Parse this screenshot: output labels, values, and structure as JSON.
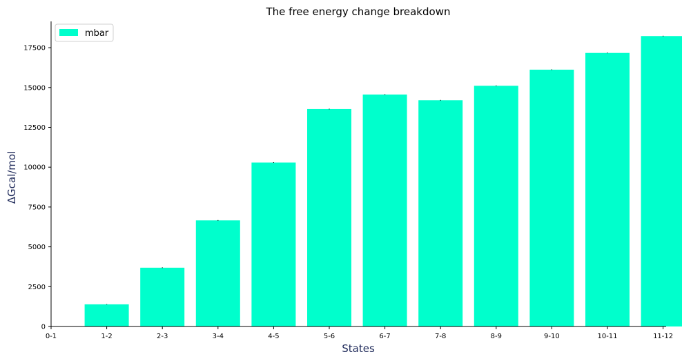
{
  "chart_data": {
    "type": "bar",
    "title": "The free energy change breakdown",
    "xlabel": "States",
    "ylabel": "ΔGcal/mol",
    "categories": [
      "0-1",
      "1-2",
      "2-3",
      "3-4",
      "4-5",
      "5-6",
      "6-7",
      "7-8",
      "8-9",
      "9-10",
      "10-11",
      "11-12"
    ],
    "series": [
      {
        "name": "mbar",
        "color": "#00ffcc",
        "values": [
          0,
          1390,
          3690,
          6660,
          10290,
          13650,
          14560,
          14200,
          15110,
          16120,
          17170,
          18230
        ],
        "errors": [
          10,
          15,
          20,
          20,
          20,
          20,
          20,
          20,
          20,
          20,
          20,
          20
        ]
      }
    ],
    "ylim": [
      0,
      19150
    ],
    "yticks": [
      0,
      2500,
      5000,
      7500,
      10000,
      12500,
      15000,
      17500
    ],
    "legend_position": "top-left",
    "grid": false
  }
}
